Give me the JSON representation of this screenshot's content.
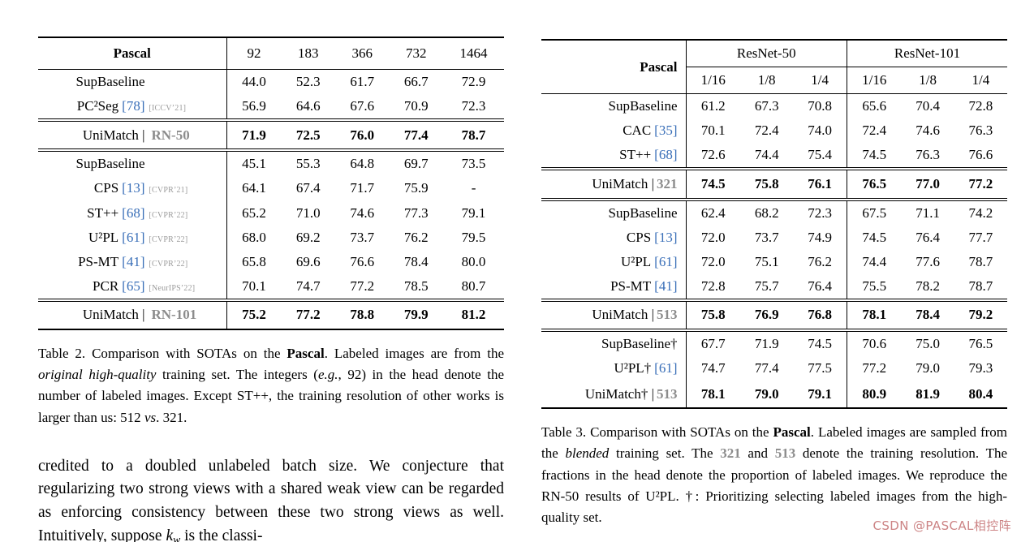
{
  "colors": {
    "citation": "#3a6fb8",
    "variant_gray": "#8c8c8c",
    "venue_gray": "#9b9b9b",
    "watermark_pink": "#c87879"
  },
  "watermark": {
    "text": "CSDN @PASCAL相控阵"
  },
  "table2": {
    "venue_slot": true,
    "header": {
      "label": "Pascal",
      "cols": [
        "92",
        "183",
        "366",
        "732",
        "1464"
      ]
    },
    "groups": [
      {
        "rows": [
          {
            "name": "SupBaseline",
            "values": [
              "44.0",
              "52.3",
              "61.7",
              "66.7",
              "72.9"
            ]
          },
          {
            "name": "PC²Seg",
            "cite": "[78]",
            "venue": "[ICCV’21]",
            "values": [
              "56.9",
              "64.6",
              "67.6",
              "70.9",
              "72.3"
            ]
          }
        ]
      },
      {
        "rows": [
          {
            "name": "UniMatch |",
            "variant": "RN-50",
            "bold": true,
            "values": [
              "71.9",
              "72.5",
              "76.0",
              "77.4",
              "78.7"
            ]
          }
        ]
      },
      {
        "rows": [
          {
            "name": "SupBaseline",
            "values": [
              "45.1",
              "55.3",
              "64.8",
              "69.7",
              "73.5"
            ]
          },
          {
            "name": "CPS",
            "cite": "[13]",
            "venue": "[CVPR’21]",
            "values": [
              "64.1",
              "67.4",
              "71.7",
              "75.9",
              "-"
            ]
          },
          {
            "name": "ST++",
            "cite": "[68]",
            "venue": "[CVPR’22]",
            "values": [
              "65.2",
              "71.0",
              "74.6",
              "77.3",
              "79.1"
            ]
          },
          {
            "name": "U²PL",
            "cite": "[61]",
            "venue": "[CVPR’22]",
            "values": [
              "68.0",
              "69.2",
              "73.7",
              "76.2",
              "79.5"
            ]
          },
          {
            "name": "PS-MT",
            "cite": "[41]",
            "venue": "[CVPR’22]",
            "values": [
              "65.8",
              "69.6",
              "76.6",
              "78.4",
              "80.0"
            ]
          },
          {
            "name": "PCR",
            "cite": "[65]",
            "venue": "[NeurIPS’22]",
            "values": [
              "70.1",
              "74.7",
              "77.2",
              "78.5",
              "80.7"
            ]
          }
        ]
      },
      {
        "rows": [
          {
            "name": "UniMatch |",
            "variant": "RN-101",
            "bold": true,
            "values": [
              "75.2",
              "77.2",
              "78.8",
              "79.9",
              "81.2"
            ]
          }
        ]
      }
    ]
  },
  "table3": {
    "venue_slot": false,
    "header": {
      "label": "Pascal",
      "groups": [
        "ResNet-50",
        "ResNet-101"
      ],
      "subcols": [
        "1/16",
        "1/8",
        "1/4",
        "1/16",
        "1/8",
        "1/4"
      ]
    },
    "groups": [
      {
        "rows": [
          {
            "name": "SupBaseline",
            "values": [
              "61.2",
              "67.3",
              "70.8",
              "65.6",
              "70.4",
              "72.8"
            ]
          },
          {
            "name": "CAC",
            "cite": "[35]",
            "values": [
              "70.1",
              "72.4",
              "74.0",
              "72.4",
              "74.6",
              "76.3"
            ]
          },
          {
            "name": "ST++",
            "cite": "[68]",
            "values": [
              "72.6",
              "74.4",
              "75.4",
              "74.5",
              "76.3",
              "76.6"
            ]
          }
        ]
      },
      {
        "rows": [
          {
            "name": "UniMatch |",
            "variant": "321",
            "bold": true,
            "values": [
              "74.5",
              "75.8",
              "76.1",
              "76.5",
              "77.0",
              "77.2"
            ]
          }
        ]
      },
      {
        "rows": [
          {
            "name": "SupBaseline",
            "values": [
              "62.4",
              "68.2",
              "72.3",
              "67.5",
              "71.1",
              "74.2"
            ]
          },
          {
            "name": "CPS",
            "cite": "[13]",
            "values": [
              "72.0",
              "73.7",
              "74.9",
              "74.5",
              "76.4",
              "77.7"
            ]
          },
          {
            "name": "U²PL",
            "cite": "[61]",
            "values": [
              "72.0",
              "75.1",
              "76.2",
              "74.4",
              "77.6",
              "78.7"
            ]
          },
          {
            "name": "PS-MT",
            "cite": "[41]",
            "values": [
              "72.8",
              "75.7",
              "76.4",
              "75.5",
              "78.2",
              "78.7"
            ]
          }
        ]
      },
      {
        "rows": [
          {
            "name": "UniMatch |",
            "variant": "513",
            "bold": true,
            "values": [
              "75.8",
              "76.9",
              "76.8",
              "78.1",
              "78.4",
              "79.2"
            ]
          }
        ]
      },
      {
        "rows": [
          {
            "name": "SupBaseline†",
            "values": [
              "67.7",
              "71.9",
              "74.5",
              "70.6",
              "75.0",
              "76.5"
            ]
          },
          {
            "name": "U²PL†",
            "cite": "[61]",
            "values": [
              "74.7",
              "77.4",
              "77.5",
              "77.2",
              "79.0",
              "79.3"
            ]
          },
          {
            "name": "UniMatch† |",
            "variant": "513",
            "bold": true,
            "values": [
              "78.1",
              "79.0",
              "79.1",
              "80.9",
              "81.9",
              "80.4"
            ]
          }
        ]
      }
    ]
  },
  "caption2": {
    "segments": [
      {
        "t": "Table 2. Comparison with SOTAs on the ",
        "s": "normal"
      },
      {
        "t": "Pascal",
        "s": "bold"
      },
      {
        "t": ". Labeled images are from the ",
        "s": "normal"
      },
      {
        "t": "original high-quality",
        "s": "italic"
      },
      {
        "t": " training set. The integers (",
        "s": "normal"
      },
      {
        "t": "e.g.",
        "s": "italic"
      },
      {
        "t": ", 92) in the head denote the number of labeled images. Except ST++, the training resolution of other works is larger than us: 512 ",
        "s": "normal"
      },
      {
        "t": "vs",
        "s": "italic"
      },
      {
        "t": ". 321.",
        "s": "normal"
      }
    ]
  },
  "caption3": {
    "segments": [
      {
        "t": "Table 3. Comparison with SOTAs on the ",
        "s": "normal"
      },
      {
        "t": "Pascal",
        "s": "bold"
      },
      {
        "t": ". Labeled images are sampled from the ",
        "s": "normal"
      },
      {
        "t": "blended",
        "s": "italic"
      },
      {
        "t": " training set. The ",
        "s": "normal"
      },
      {
        "t": "321",
        "s": "grayBold"
      },
      {
        "t": " and ",
        "s": "normal"
      },
      {
        "t": "513",
        "s": "grayBold"
      },
      {
        "t": " denote the training resolution. The fractions in the head denote the proportion of labeled images. We reproduce the RN-50 results of U²PL. †: Prioritizing selecting labeled images from the high-quality set.",
        "s": "normal"
      }
    ]
  },
  "body": {
    "segments": [
      {
        "t": "credited to a doubled unlabeled batch size. We conjecture that regularizing two strong views with a shared weak view can be regarded as enforcing consistency between these two strong views as well. Intuitively, suppose ",
        "s": "normal"
      },
      {
        "t": "k",
        "s": "mathI"
      },
      {
        "t": "w",
        "s": "mathSub"
      },
      {
        "t": " is the classi-",
        "s": "normal"
      }
    ]
  }
}
